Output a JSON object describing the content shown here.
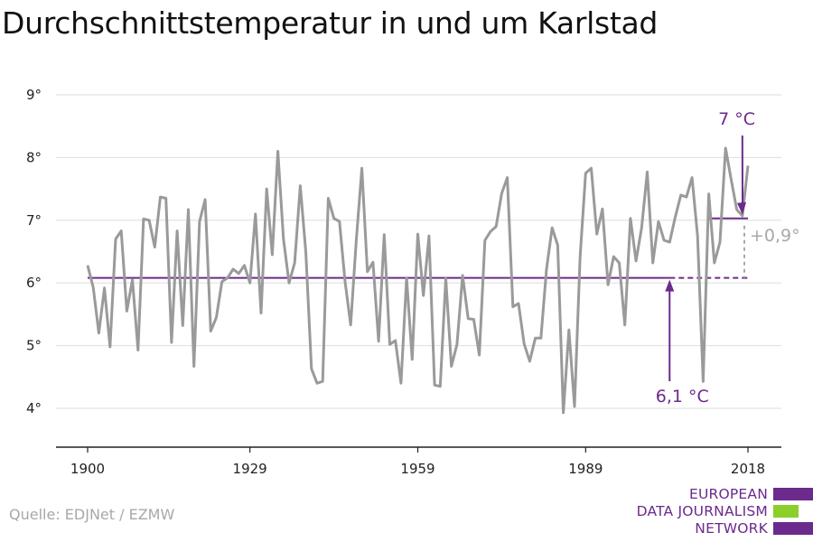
{
  "title": "Durchschnittstemperatur in und um Karlstad",
  "source": "Quelle: EDJNet / EZMW",
  "logo": {
    "lines": [
      "EUROPEAN",
      "DATA JOURNALISM",
      "NETWORK"
    ],
    "colors": {
      "purple": "#6b2a8c",
      "green": "#8ccf2a"
    }
  },
  "chart_data": {
    "type": "line",
    "xlabel": "",
    "ylabel": "",
    "x_ticks": [
      "1900",
      "1929",
      "1959",
      "1989",
      "2018"
    ],
    "x_tick_values": [
      1900,
      1929,
      1959,
      1989,
      2018
    ],
    "y_ticks": [
      "4°",
      "5°",
      "6°",
      "7°",
      "8°",
      "9°"
    ],
    "y_tick_values": [
      4,
      5,
      6,
      7,
      8,
      9
    ],
    "xlim": [
      1900,
      2018
    ],
    "ylim": [
      3.5,
      9.0
    ],
    "grid": "horizontal",
    "series": [
      {
        "color": "#9a9a9a",
        "x": [
          1900,
          1901,
          1902,
          1903,
          1904,
          1905,
          1906,
          1907,
          1908,
          1909,
          1910,
          1911,
          1912,
          1913,
          1914,
          1915,
          1916,
          1917,
          1918,
          1919,
          1920,
          1921,
          1922,
          1923,
          1924,
          1925,
          1926,
          1927,
          1928,
          1929,
          1930,
          1931,
          1932,
          1933,
          1934,
          1935,
          1936,
          1937,
          1938,
          1939,
          1940,
          1941,
          1942,
          1943,
          1944,
          1945,
          1946,
          1947,
          1948,
          1949,
          1950,
          1951,
          1952,
          1953,
          1954,
          1955,
          1956,
          1957,
          1958,
          1959,
          1960,
          1961,
          1962,
          1963,
          1964,
          1965,
          1966,
          1967,
          1968,
          1969,
          1970,
          1971,
          1972,
          1973,
          1974,
          1975,
          1976,
          1977,
          1978,
          1979,
          1980,
          1981,
          1982,
          1983,
          1984,
          1985,
          1986,
          1987,
          1988,
          1989,
          1990,
          1991,
          1992,
          1993,
          1994,
          1995,
          1996,
          1997,
          1998,
          1999,
          2000,
          2001,
          2002,
          2003,
          2004,
          2005,
          2006,
          2007,
          2008,
          2009,
          2010,
          2011,
          2012,
          2013,
          2014,
          2015,
          2016,
          2017,
          2018
        ],
        "values": [
          6.28,
          5.93,
          5.2,
          5.92,
          4.98,
          6.7,
          6.83,
          5.55,
          6.05,
          4.93,
          7.02,
          7.0,
          6.57,
          7.37,
          7.35,
          5.05,
          6.83,
          5.32,
          7.17,
          4.67,
          6.98,
          7.33,
          5.23,
          5.45,
          6.02,
          6.08,
          6.22,
          6.15,
          6.28,
          6.0,
          7.1,
          5.52,
          7.5,
          6.45,
          8.1,
          6.7,
          6.0,
          6.32,
          7.55,
          6.48,
          4.63,
          4.4,
          4.43,
          7.35,
          7.03,
          6.98,
          6.02,
          5.33,
          6.68,
          7.83,
          6.18,
          6.33,
          5.07,
          6.77,
          5.02,
          5.08,
          4.4,
          6.08,
          4.78,
          6.78,
          5.8,
          6.75,
          4.37,
          4.35,
          6.07,
          4.67,
          5.02,
          6.12,
          5.43,
          5.42,
          4.85,
          6.68,
          6.82,
          6.9,
          7.43,
          7.68,
          5.62,
          5.67,
          5.03,
          4.75,
          5.12,
          5.12,
          6.22,
          6.88,
          6.6,
          3.93,
          5.25,
          4.03,
          6.42,
          7.75,
          7.83,
          6.78,
          7.18,
          5.97,
          6.42,
          6.32,
          5.33,
          7.03,
          6.35,
          6.88,
          7.77,
          6.32,
          6.98,
          6.68,
          6.65,
          7.05,
          7.4,
          7.37,
          7.68,
          6.75,
          4.43,
          7.42,
          6.32,
          6.65,
          8.15,
          7.65,
          7.17,
          7.07,
          7.87
        ]
      }
    ],
    "reference_lines": [
      {
        "label": "6,1 °C",
        "value": 6.08,
        "x_start": 1900,
        "x_end": 2018,
        "solid_until": 2004,
        "color": "#6b2a8c"
      },
      {
        "label": "7 °C",
        "value": 7.03,
        "x_start": 2011,
        "x_end": 2018,
        "color": "#6b2a8c"
      }
    ],
    "annotations": {
      "difference_label": "+0,9°",
      "difference_color": "#a8a8a8",
      "arrow_low_at_year": 2004,
      "arrow_high_at_year": 2018
    }
  }
}
